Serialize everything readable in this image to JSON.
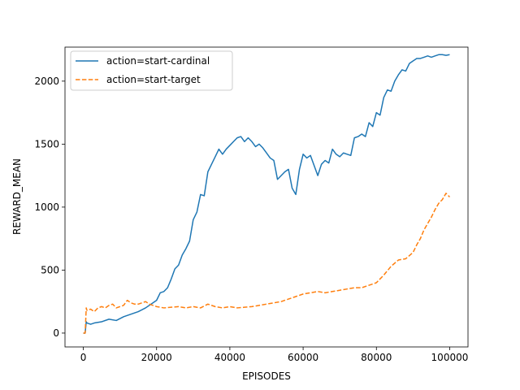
{
  "chart_data": {
    "type": "line",
    "xlabel": "EPISODES",
    "ylabel": "REWARD_MEAN",
    "xlim": [
      -5000,
      105000
    ],
    "ylim": [
      -110,
      2270
    ],
    "xticks": [
      0,
      20000,
      40000,
      60000,
      80000,
      100000
    ],
    "yticks": [
      0,
      500,
      1000,
      1500,
      2000
    ],
    "grid": false,
    "legend_position": "top-left",
    "series": [
      {
        "name": "action=start-cardinal",
        "color": "#1f77b4",
        "style": "solid",
        "x": [
          0,
          500,
          800,
          1000,
          2000,
          3000,
          5000,
          7000,
          9000,
          11000,
          13000,
          15000,
          17000,
          19000,
          20000,
          21000,
          22000,
          23000,
          24000,
          25000,
          26000,
          27000,
          28000,
          29000,
          30000,
          31000,
          32000,
          33000,
          34000,
          35000,
          36000,
          37000,
          38000,
          39000,
          40000,
          41000,
          42000,
          43000,
          44000,
          45000,
          46000,
          47000,
          48000,
          49000,
          50000,
          51000,
          52000,
          53000,
          54000,
          55000,
          56000,
          57000,
          58000,
          59000,
          60000,
          61000,
          62000,
          63000,
          64000,
          65000,
          66000,
          67000,
          68000,
          69000,
          70000,
          71000,
          72000,
          73000,
          74000,
          75000,
          76000,
          77000,
          78000,
          79000,
          80000,
          81000,
          82000,
          83000,
          84000,
          85000,
          86000,
          87000,
          88000,
          89000,
          90000,
          91000,
          92000,
          93000,
          94000,
          95000,
          96000,
          97000,
          98000,
          99000,
          100000
        ],
        "y": [
          0,
          0,
          90,
          80,
          70,
          80,
          90,
          110,
          100,
          130,
          150,
          170,
          200,
          240,
          260,
          320,
          330,
          360,
          430,
          510,
          540,
          620,
          670,
          730,
          900,
          960,
          1100,
          1090,
          1280,
          1340,
          1400,
          1460,
          1420,
          1460,
          1490,
          1520,
          1550,
          1560,
          1520,
          1550,
          1520,
          1480,
          1500,
          1470,
          1430,
          1390,
          1370,
          1220,
          1250,
          1280,
          1300,
          1150,
          1100,
          1300,
          1420,
          1390,
          1410,
          1330,
          1250,
          1340,
          1370,
          1350,
          1460,
          1420,
          1400,
          1430,
          1420,
          1410,
          1550,
          1560,
          1580,
          1560,
          1670,
          1640,
          1750,
          1730,
          1870,
          1930,
          1920,
          2000,
          2050,
          2090,
          2080,
          2140,
          2160,
          2180,
          2180,
          2190,
          2200,
          2190,
          2200,
          2210,
          2210,
          2205,
          2210
        ]
      },
      {
        "name": "action=start-target",
        "color": "#ff7f0e",
        "style": "dashed",
        "x": [
          0,
          500,
          800,
          1000,
          2000,
          3000,
          4000,
          5000,
          6000,
          7000,
          8000,
          9000,
          10000,
          11000,
          12000,
          13000,
          14000,
          15000,
          16000,
          17000,
          18000,
          19000,
          20000,
          22000,
          24000,
          26000,
          28000,
          30000,
          32000,
          34000,
          36000,
          38000,
          40000,
          42000,
          44000,
          46000,
          48000,
          50000,
          52000,
          54000,
          56000,
          58000,
          60000,
          62000,
          64000,
          66000,
          68000,
          70000,
          72000,
          74000,
          76000,
          78000,
          80000,
          82000,
          84000,
          86000,
          88000,
          90000,
          91000,
          92000,
          93000,
          94000,
          95000,
          96000,
          97000,
          98000,
          99000,
          100000
        ],
        "y": [
          0,
          0,
          200,
          180,
          190,
          170,
          200,
          210,
          200,
          220,
          230,
          200,
          210,
          220,
          260,
          240,
          230,
          230,
          240,
          250,
          230,
          220,
          210,
          200,
          205,
          210,
          200,
          210,
          200,
          230,
          210,
          200,
          210,
          200,
          205,
          210,
          220,
          230,
          240,
          250,
          270,
          290,
          310,
          320,
          330,
          320,
          330,
          340,
          350,
          360,
          360,
          380,
          400,
          460,
          530,
          580,
          590,
          640,
          700,
          750,
          820,
          870,
          920,
          980,
          1030,
          1060,
          1110,
          1080
        ]
      }
    ]
  }
}
